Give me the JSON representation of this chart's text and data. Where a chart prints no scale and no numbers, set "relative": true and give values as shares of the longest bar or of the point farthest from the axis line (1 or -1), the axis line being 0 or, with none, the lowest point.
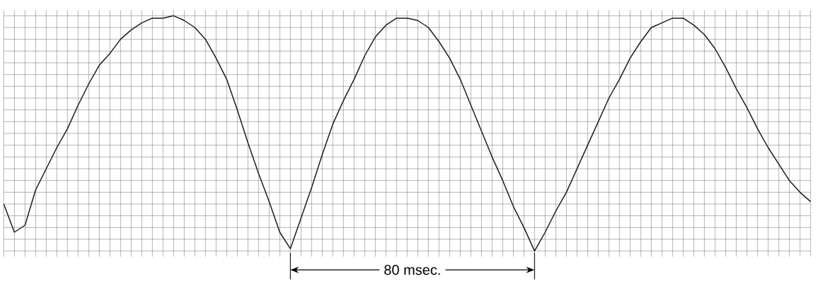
{
  "chart_data": {
    "type": "line",
    "relative": true,
    "grid": true,
    "categories": [
      null,
      null,
      null,
      null,
      null,
      null,
      null,
      null,
      null,
      null,
      null,
      null,
      null,
      null,
      null,
      null,
      null,
      null,
      null,
      null,
      null,
      null,
      null,
      null,
      null,
      null,
      null,
      null,
      null,
      null,
      null,
      null,
      null,
      null,
      null,
      null,
      null,
      null,
      null,
      null,
      null,
      null,
      null,
      null,
      null,
      null,
      null,
      null,
      null,
      null,
      null,
      null,
      null,
      null,
      null,
      null,
      null,
      null,
      null,
      null,
      null,
      null,
      null,
      null,
      null,
      null,
      null,
      null,
      null,
      null,
      null,
      null,
      null,
      null,
      null,
      null,
      null
    ],
    "series": [
      {
        "color": "#1a1a1a",
        "values": [
          0.2,
          0.08,
          0.11,
          0.26,
          0.35,
          0.44,
          0.52,
          0.62,
          0.71,
          0.79,
          0.84,
          0.9,
          0.94,
          0.97,
          0.99,
          0.99,
          1,
          0.98,
          0.95,
          0.9,
          0.82,
          0.73,
          0.6,
          0.46,
          0.33,
          0.21,
          0.08,
          0.01,
          0.14,
          0.27,
          0.41,
          0.54,
          0.64,
          0.73,
          0.83,
          0.91,
          0.96,
          0.99,
          0.99,
          0.98,
          0.95,
          0.89,
          0.82,
          0.73,
          0.62,
          0.51,
          0.4,
          0.3,
          0.19,
          0.1,
          0,
          0.08,
          0.17,
          0.25,
          0.35,
          0.45,
          0.55,
          0.65,
          0.73,
          0.82,
          0.89,
          0.95,
          0.97,
          0.99,
          0.99,
          0.96,
          0.92,
          0.86,
          0.78,
          0.69,
          0.61,
          0.52,
          0.44,
          0.37,
          0.3,
          0.25,
          0.21
        ]
      }
    ],
    "annotations": [
      "80 msec."
    ]
  }
}
